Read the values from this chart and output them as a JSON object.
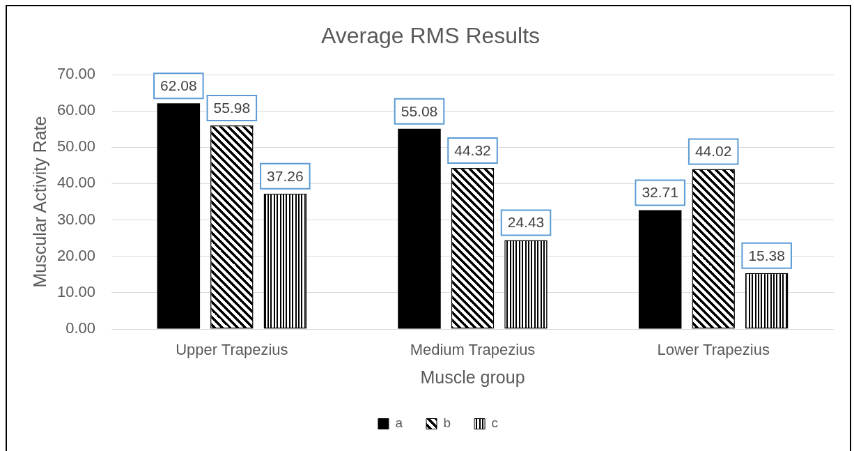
{
  "chart_data": {
    "type": "bar",
    "title": "Average RMS Results",
    "xlabel": "Muscle group",
    "ylabel": "Muscular Activity Rate",
    "categories": [
      "Upper Trapezius",
      "Medium Trapezius",
      "Lower Trapezius"
    ],
    "series": [
      {
        "name": "a",
        "color": "#000000",
        "values": [
          62.08,
          55.08,
          32.71
        ]
      },
      {
        "name": "b",
        "color": "#000000",
        "values": [
          55.98,
          44.32,
          44.02
        ]
      },
      {
        "name": "c",
        "color": "#000000",
        "values": [
          37.26,
          24.43,
          15.38
        ]
      }
    ],
    "ylim": [
      0,
      70
    ],
    "yticks": [
      {
        "value": 0,
        "label": "0.00"
      },
      {
        "value": 10,
        "label": "10.00"
      },
      {
        "value": 20,
        "label": "20.00"
      },
      {
        "value": 30,
        "label": "30.00"
      },
      {
        "value": 40,
        "label": "40.00"
      },
      {
        "value": 50,
        "label": "50.00"
      },
      {
        "value": 60,
        "label": "60.00"
      },
      {
        "value": 70,
        "label": "70.00"
      }
    ],
    "grid": "y",
    "data_labels": true,
    "legend": "bottom"
  }
}
